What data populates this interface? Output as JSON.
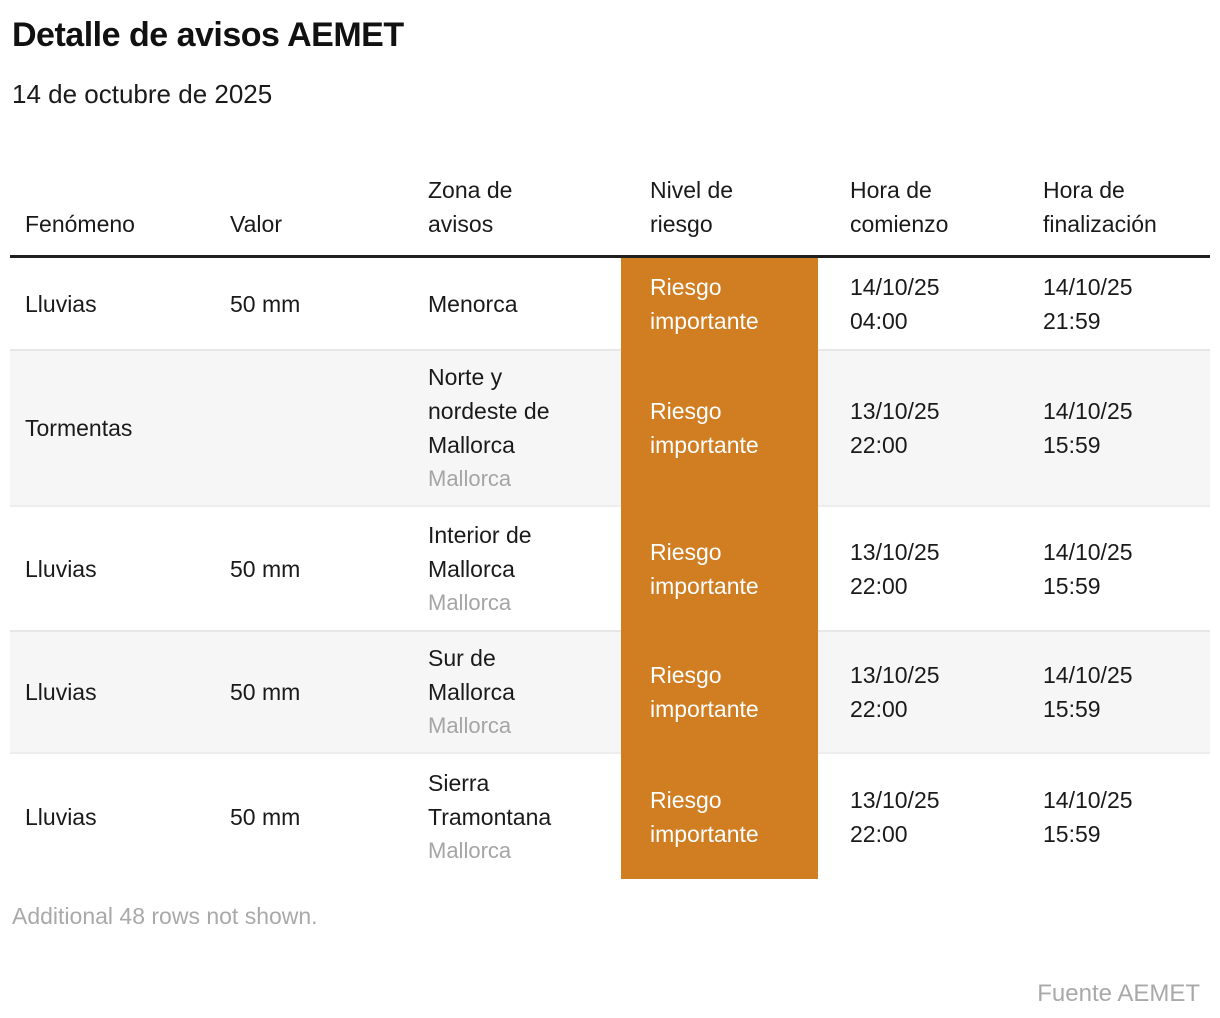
{
  "title": "Detalle de avisos AEMET",
  "subtitle": "14 de octubre de 2025",
  "footnote": "Additional 48 rows not shown.",
  "source": "Fuente AEMET",
  "colors": {
    "risk_important_bg": "#d17d21",
    "risk_important_text": "#ffffff",
    "alt_row_bg": "#f6f6f6",
    "muted_text": "#a9a9a9",
    "header_rule": "#1f1f1f"
  },
  "chart_data": {
    "type": "table",
    "title": "Detalle de avisos AEMET",
    "subtitle": "14 de octubre de 2025",
    "columns": [
      "Fenómeno",
      "Valor",
      "Zona de avisos",
      "Nivel de riesgo",
      "Hora de comienzo",
      "Hora de finalización"
    ],
    "rows": [
      {
        "fenomeno": "Lluvias",
        "valor": "50 mm",
        "zona": "Menorca",
        "zona_region": "",
        "riesgo": "Riesgo importante",
        "comienzo_fecha": "14/10/25",
        "comienzo_hora": "04:00",
        "fin_fecha": "14/10/25",
        "fin_hora": "21:59"
      },
      {
        "fenomeno": "Tormentas",
        "valor": "",
        "zona": "Norte y nordeste de Mallorca",
        "zona_region": "Mallorca",
        "riesgo": "Riesgo importante",
        "comienzo_fecha": "13/10/25",
        "comienzo_hora": "22:00",
        "fin_fecha": "14/10/25",
        "fin_hora": "15:59"
      },
      {
        "fenomeno": "Lluvias",
        "valor": "50 mm",
        "zona": "Interior de Mallorca",
        "zona_region": "Mallorca",
        "riesgo": "Riesgo importante",
        "comienzo_fecha": "13/10/25",
        "comienzo_hora": "22:00",
        "fin_fecha": "14/10/25",
        "fin_hora": "15:59"
      },
      {
        "fenomeno": "Lluvias",
        "valor": "50 mm",
        "zona": "Sur de Mallorca",
        "zona_region": "Mallorca",
        "riesgo": "Riesgo importante",
        "comienzo_fecha": "13/10/25",
        "comienzo_hora": "22:00",
        "fin_fecha": "14/10/25",
        "fin_hora": "15:59"
      },
      {
        "fenomeno": "Lluvias",
        "valor": "50 mm",
        "zona": "Sierra Tramontana",
        "zona_region": "Mallorca",
        "riesgo": "Riesgo importante",
        "comienzo_fecha": "13/10/25",
        "comienzo_hora": "22:00",
        "fin_fecha": "14/10/25",
        "fin_hora": "15:59"
      }
    ]
  }
}
